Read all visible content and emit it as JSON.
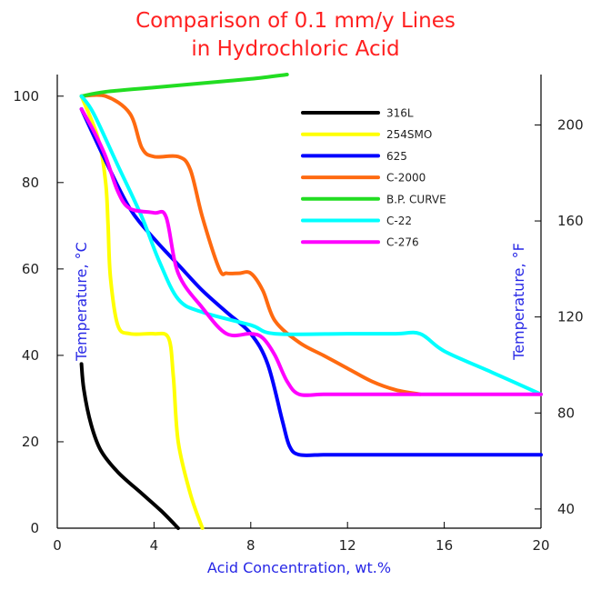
{
  "chart_data": {
    "type": "line",
    "title_lines": [
      "Comparison of 0.1 mm/y Lines",
      "in Hydrochloric Acid"
    ],
    "xlabel": "Acid Concentration, wt.%",
    "ylabel": "Temperature, °C",
    "y2label": "Temperature, °F",
    "xlim": [
      0,
      20
    ],
    "ylim": [
      0,
      105
    ],
    "xticks": [
      0,
      4,
      8,
      12,
      16,
      20
    ],
    "yticks": [
      0,
      20,
      40,
      60,
      80,
      100
    ],
    "y2ticks": [
      40,
      80,
      120,
      160,
      200
    ],
    "grid": false,
    "legend_position": "top-right",
    "series": [
      {
        "name": "316L",
        "color": "#000000",
        "x": [
          1.0,
          1.1,
          1.4,
          1.8,
          2.5,
          3.5,
          4.3,
          5.0
        ],
        "y": [
          38,
          32,
          24,
          18,
          13,
          8,
          4,
          0
        ]
      },
      {
        "name": "254SMO",
        "color": "#ffff00",
        "x": [
          1.0,
          1.7,
          2.0,
          2.1,
          2.2,
          2.5,
          3.0,
          4.0,
          4.6,
          4.8,
          5.0,
          5.5,
          6.0
        ],
        "y": [
          100,
          90,
          80,
          70,
          58,
          47,
          45,
          45,
          44,
          35,
          20,
          8,
          0
        ]
      },
      {
        "name": "625",
        "color": "#0000ff",
        "x": [
          1.0,
          2.0,
          3.0,
          4.0,
          5.0,
          6.0,
          7.0,
          8.0,
          8.7,
          9.3,
          9.6,
          10.0,
          11.0,
          12.0,
          16.0,
          20.0
        ],
        "y": [
          97,
          85,
          74,
          67,
          61,
          55,
          50,
          45,
          38,
          25,
          19,
          17,
          17,
          17,
          17,
          17
        ]
      },
      {
        "name": "C-2000",
        "color": "#ff6a10",
        "x": [
          1.0,
          2.0,
          3.0,
          3.5,
          4.0,
          5.0,
          5.5,
          6.0,
          6.7,
          7.0,
          7.5,
          8.0,
          8.5,
          9.0,
          10.0,
          11.0,
          12.0,
          13.0,
          14.0,
          15.0
        ],
        "y": [
          100,
          100,
          96,
          88,
          86,
          86,
          83,
          72,
          60,
          59,
          59,
          59,
          55,
          48,
          43,
          40,
          37,
          34,
          32,
          31
        ]
      },
      {
        "name": "B.P. CURVE",
        "color": "#22dd22",
        "x": [
          1.0,
          2.0,
          4.0,
          6.0,
          8.0,
          9.5
        ],
        "y": [
          100,
          101,
          102,
          103,
          104,
          105
        ]
      },
      {
        "name": "C-22",
        "color": "#00ffff",
        "x": [
          1.0,
          1.5,
          2.5,
          3.5,
          4.2,
          5.0,
          6.0,
          8.0,
          9.0,
          12.0,
          14.0,
          15.0,
          16.0,
          18.0,
          20.0
        ],
        "y": [
          100,
          96,
          84,
          72,
          62,
          53,
          50,
          47,
          45,
          45,
          45,
          45,
          41,
          36,
          31
        ]
      },
      {
        "name": "C-276",
        "color": "#ff00ff",
        "x": [
          1.0,
          1.5,
          2.0,
          2.5,
          3.0,
          4.0,
          4.5,
          5.0,
          6.0,
          7.0,
          8.0,
          8.5,
          9.0,
          9.5,
          10.0,
          11.0,
          12.0,
          16.0,
          20.0
        ],
        "y": [
          97,
          92,
          86,
          78,
          74,
          73,
          72,
          59,
          51,
          45,
          45,
          44,
          40,
          34,
          31,
          31,
          31,
          31,
          31
        ]
      }
    ]
  }
}
